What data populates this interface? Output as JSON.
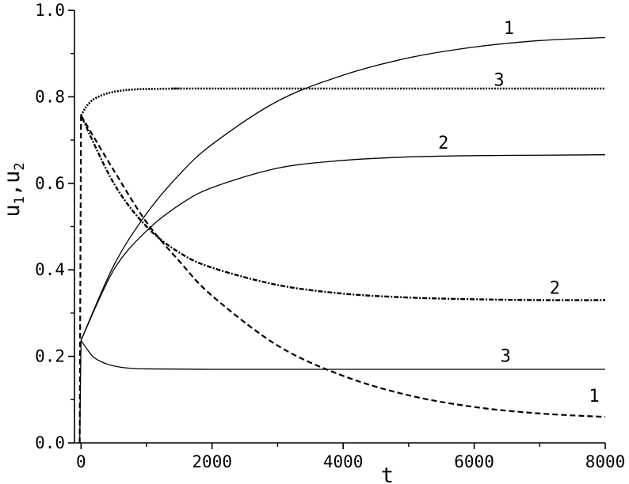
{
  "chart_data": {
    "type": "line",
    "xlabel": "t",
    "ylabel": {
      "base1": "u",
      "sub1": "1",
      "sep": ",",
      "base2": "u",
      "sub2": "2"
    },
    "xlim": [
      0,
      8000
    ],
    "ylim": [
      0.0,
      1.0
    ],
    "x_ticks": [
      0,
      2000,
      4000,
      6000,
      8000
    ],
    "x_tick_labels": [
      "0",
      "2000",
      "4000",
      "6000",
      "8000"
    ],
    "y_ticks": [
      0.0,
      0.2,
      0.4,
      0.6,
      0.8,
      1.0
    ],
    "y_tick_labels": [
      "0.0",
      "0.2",
      "0.4",
      "0.6",
      "0.8",
      "1.0"
    ],
    "grid": false,
    "series": [
      {
        "name": "1",
        "style": "solid",
        "x": [
          0,
          500,
          1000,
          1500,
          2000,
          3000,
          4000,
          5000,
          6000,
          7000,
          8000
        ],
        "y": [
          0.237,
          0.41,
          0.53,
          0.62,
          0.69,
          0.79,
          0.85,
          0.89,
          0.915,
          0.93,
          0.937
        ],
        "label_at": [
          6450,
          0.945
        ]
      },
      {
        "name": "2",
        "style": "solid",
        "x": [
          0,
          500,
          1000,
          1500,
          2000,
          3000,
          4000,
          5000,
          6000,
          7000,
          8000
        ],
        "y": [
          0.237,
          0.4,
          0.49,
          0.55,
          0.59,
          0.635,
          0.653,
          0.661,
          0.664,
          0.665,
          0.666
        ],
        "label_at": [
          5450,
          0.68
        ]
      },
      {
        "name": "3",
        "style": "solid",
        "x": [
          0,
          100,
          200,
          400,
          600,
          800,
          1000,
          2000,
          4000,
          8000
        ],
        "y": [
          0.237,
          0.215,
          0.197,
          0.182,
          0.175,
          0.172,
          0.171,
          0.17,
          0.17,
          0.17
        ],
        "label_at": [
          6400,
          0.187
        ]
      },
      {
        "name": "1",
        "style": "dashed",
        "x": [
          0,
          500,
          1000,
          1500,
          2000,
          3000,
          4000,
          5000,
          6000,
          7000,
          8000
        ],
        "y": [
          0.757,
          0.63,
          0.51,
          0.42,
          0.34,
          0.225,
          0.155,
          0.11,
          0.083,
          0.068,
          0.06
        ],
        "label_at": [
          7750,
          0.095
        ]
      },
      {
        "name": "2",
        "style": "dotdash",
        "x": [
          0,
          500,
          1000,
          1500,
          2000,
          3000,
          4000,
          5000,
          6000,
          7000,
          8000
        ],
        "y": [
          0.757,
          0.6,
          0.5,
          0.44,
          0.405,
          0.365,
          0.345,
          0.336,
          0.332,
          0.33,
          0.33
        ],
        "label_at": [
          7150,
          0.345
        ]
      },
      {
        "name": "3",
        "style": "dotted",
        "x": [
          0,
          50,
          100,
          200,
          400,
          600,
          800,
          1000,
          1500,
          2000,
          8000
        ],
        "y": [
          0.757,
          0.77,
          0.781,
          0.795,
          0.808,
          0.814,
          0.817,
          0.818,
          0.819,
          0.819,
          0.819
        ],
        "label_at": [
          6300,
          0.825
        ]
      }
    ],
    "initial_jumps": [
      {
        "style": "dashed",
        "x": [
          -20,
          0
        ],
        "y": [
          0.0,
          0.757
        ]
      },
      {
        "style": "solid",
        "x": [
          -20,
          0
        ],
        "y": [
          0.0,
          0.237
        ]
      }
    ]
  }
}
